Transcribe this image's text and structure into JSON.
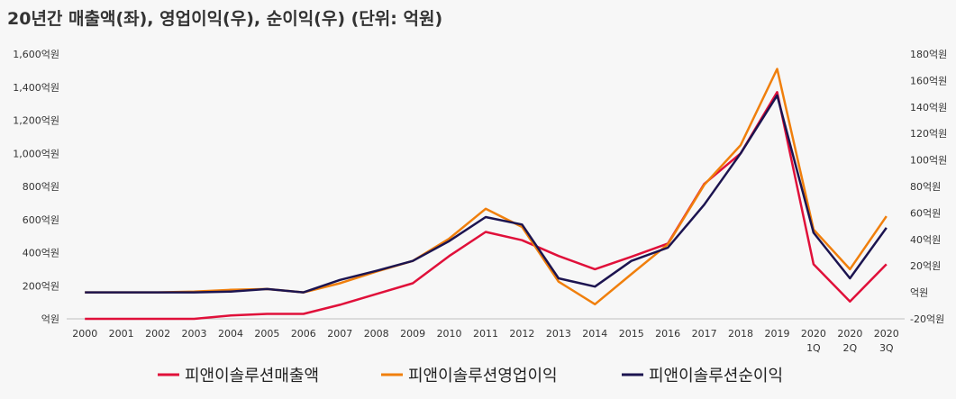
{
  "chart_data": {
    "type": "line",
    "title": "20년간 매출액(좌), 영업이익(우), 순이익(우) (단위: 억원)",
    "categories": [
      [
        "2000"
      ],
      [
        "2001"
      ],
      [
        "2002"
      ],
      [
        "2003"
      ],
      [
        "2004"
      ],
      [
        "2005"
      ],
      [
        "2006"
      ],
      [
        "2007"
      ],
      [
        "2008"
      ],
      [
        "2009"
      ],
      [
        "2010"
      ],
      [
        "2011"
      ],
      [
        "2012"
      ],
      [
        "2013"
      ],
      [
        "2014"
      ],
      [
        "2015"
      ],
      [
        "2016"
      ],
      [
        "2017"
      ],
      [
        "2018"
      ],
      [
        "2019"
      ],
      [
        "2020",
        "1Q"
      ],
      [
        "2020",
        "2Q"
      ],
      [
        "2020",
        "3Q"
      ]
    ],
    "y_left": {
      "ylim": [
        0,
        1600
      ],
      "ticks": [
        0,
        200,
        400,
        600,
        800,
        1000,
        1200,
        1400,
        1600
      ],
      "tick_labels": [
        "억원",
        "200억원",
        "400억원",
        "600억원",
        "800억원",
        "1,000억원",
        "1,200억원",
        "1,400억원",
        "1,600억원"
      ]
    },
    "y_right": {
      "ylim": [
        -20,
        180
      ],
      "ticks": [
        -20,
        0,
        20,
        40,
        60,
        80,
        100,
        120,
        140,
        160,
        180
      ],
      "tick_labels": [
        "-20억원",
        "억원",
        "20억원",
        "40억원",
        "60억원",
        "80억원",
        "100억원",
        "120억원",
        "140억원",
        "160억원",
        "180억원"
      ]
    },
    "series": [
      {
        "name": "피앤이솔루션매출액",
        "axis": "left",
        "color": "#e0103a",
        "values": [
          0,
          0,
          0,
          0,
          20,
          30,
          30,
          85,
          150,
          215,
          380,
          525,
          475,
          380,
          300,
          375,
          455,
          815,
          1000,
          1370,
          330,
          105,
          330
        ]
      },
      {
        "name": "피앤이솔루션영업이익",
        "axis": "left",
        "color": "#f07f0c",
        "values": [
          160,
          160,
          160,
          165,
          175,
          180,
          160,
          215,
          285,
          350,
          485,
          665,
          555,
          225,
          88,
          270,
          450,
          810,
          1050,
          1510,
          540,
          300,
          620
        ]
      },
      {
        "name": "피앤이솔루션순이익",
        "axis": "left",
        "color": "#1c1450",
        "values": [
          160,
          160,
          160,
          160,
          165,
          180,
          160,
          235,
          290,
          350,
          470,
          615,
          570,
          245,
          195,
          350,
          430,
          690,
          1000,
          1350,
          520,
          245,
          550
        ]
      }
    ]
  }
}
